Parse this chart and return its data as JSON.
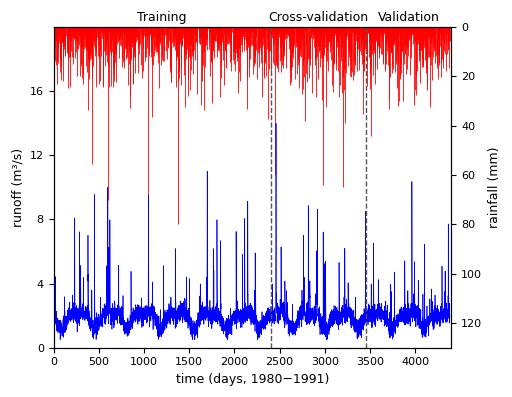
{
  "n_days": 4383,
  "vline1": 2400,
  "vline2": 3450,
  "runoff_ylim": [
    0,
    20
  ],
  "runoff_yticks": [
    0,
    4,
    8,
    12,
    16
  ],
  "rainfall_ylim_max": 130,
  "rainfall_yticks": [
    0,
    20,
    40,
    60,
    80,
    100,
    120
  ],
  "xlabel": "time (days, 1980−1991)",
  "ylabel_left": "runoff (m³/s)",
  "ylabel_right": "rainfall (mm)",
  "label_training": "Training",
  "label_cv": "Cross-validation",
  "label_val": "Validation",
  "xlim": [
    0,
    4400
  ],
  "xticks": [
    0,
    500,
    1000,
    1500,
    2000,
    2500,
    3000,
    3500,
    4000
  ],
  "runoff_color": "#0000FF",
  "rainfall_color": "#FF0000",
  "vline_color": "#555555",
  "bg_color": "#ffffff",
  "runoff_base": 1.8,
  "runoff_peak_prob": 0.025,
  "runoff_peak_max": 14.5,
  "rainfall_base_prob": 0.45,
  "rainfall_max": 120,
  "seed": 42
}
